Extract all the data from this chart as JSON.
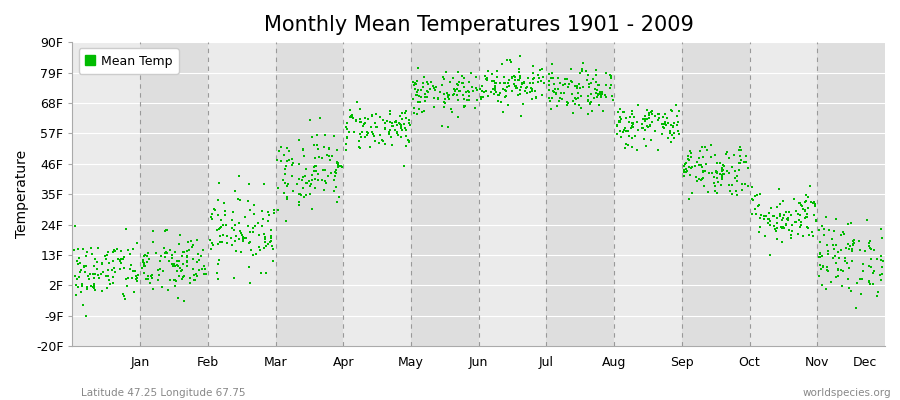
{
  "title": "Monthly Mean Temperatures 1901 - 2009",
  "ylabel": "Temperature",
  "yticks": [
    -20,
    -9,
    2,
    13,
    24,
    35,
    46,
    57,
    68,
    79,
    90
  ],
  "ytick_labels": [
    "-20F",
    "-9F",
    "2F",
    "13F",
    "24F",
    "35F",
    "46F",
    "57F",
    "68F",
    "79F",
    "90F"
  ],
  "ylim": [
    -20,
    90
  ],
  "month_labels": [
    "Jan",
    "Feb",
    "Mar",
    "Apr",
    "May",
    "Jun",
    "Jul",
    "Aug",
    "Sep",
    "Oct",
    "Nov",
    "Dec"
  ],
  "dot_color": "#00BB00",
  "dot_size": 3,
  "background_color": "#ffffff",
  "plot_bg_color_light": "#ebebeb",
  "plot_bg_color_dark": "#dedede",
  "grid_color": "#ffffff",
  "dashed_line_color": "#999999",
  "legend_label": "Mean Temp",
  "subtitle_left": "Latitude 47.25 Longitude 67.75",
  "subtitle_right": "worldspecies.org",
  "title_fontsize": 15,
  "tick_fontsize": 9,
  "label_fontsize": 10,
  "monthly_means": [
    7,
    9,
    22,
    44,
    59,
    71,
    75,
    72,
    60,
    44,
    27,
    12
  ],
  "monthly_stds": [
    6,
    6,
    7,
    7,
    4,
    4,
    4,
    4,
    4,
    5,
    5,
    7
  ],
  "n_years": 109
}
